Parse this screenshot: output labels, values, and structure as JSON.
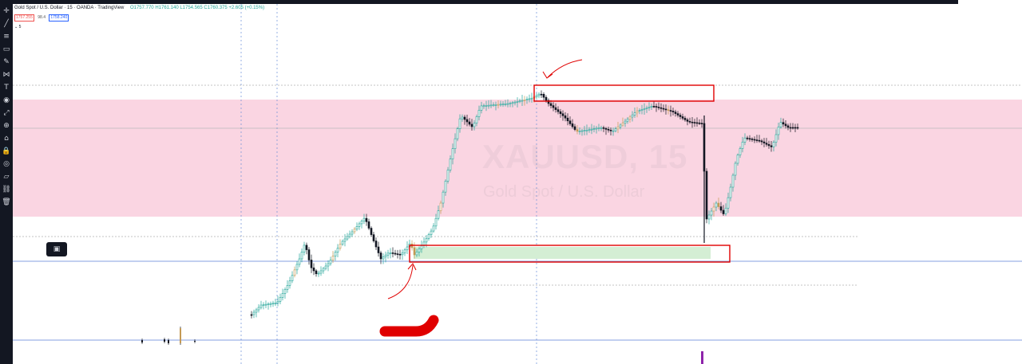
{
  "legend": {
    "symbol": "Gold Spot / U.S. Dollar · 15 · OANDA · TradingView",
    "ohlc": "O1757.770 H1761.140 L1754.565 C1760.375 +2.605 (+0.15%)"
  },
  "price_badges": {
    "sell": "1757.255",
    "spread": "98.4",
    "buy": "1758.240"
  },
  "interval_label": "5",
  "watermark": {
    "symbol": "XAUUSD, 15",
    "description": "Gold Spot / U.S. Dollar"
  },
  "colors": {
    "up": "#26a69a",
    "down": "#131722",
    "highlight_candle": "#c49a55",
    "supply_zone": "#f8bfd2",
    "demand_zone": "#d4eed4",
    "box_outline": "#e00000",
    "annotation": "#e00000",
    "volume_bar": "#8e24aa",
    "hline": "#5b7fd6",
    "vline": "#6a8ed8"
  },
  "toolbar_icons": [
    "crosshair-icon",
    "trendline-icon",
    "fib-icon",
    "rectangle-icon",
    "brush-icon",
    "pattern-icon",
    "text-icon",
    "prediction-icon",
    "measure-icon",
    "zoom-icon",
    "magnet-icon",
    "lock-drawing-icon",
    "eye-icon",
    "ruler-icon",
    "link-icon",
    "trash-icon"
  ],
  "floating_widget_icon": "layout-icon"
}
